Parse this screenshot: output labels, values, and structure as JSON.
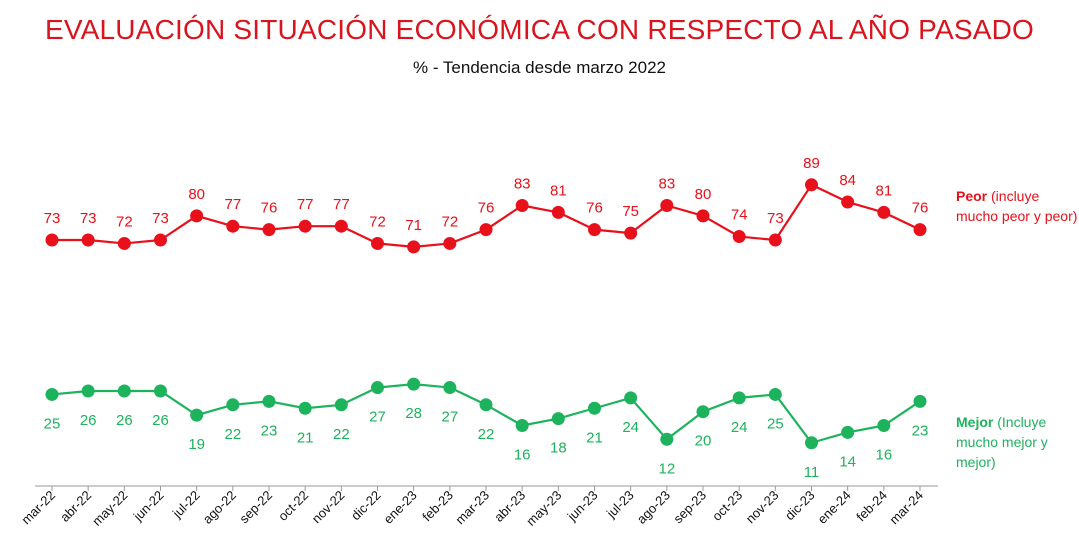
{
  "chart_data": {
    "type": "line",
    "title": "EVALUACIÓN SITUACIÓN ECONÓMICA CON RESPECTO AL AÑO PASADO",
    "subtitle": "% - Tendencia desde marzo 2022",
    "categories": [
      "mar-22",
      "abr-22",
      "may-22",
      "jun-22",
      "jul-22",
      "ago-22",
      "sep-22",
      "oct-22",
      "nov-22",
      "dic-22",
      "ene-23",
      "feb-23",
      "mar-23",
      "abr-23",
      "may-23",
      "jun-23",
      "jul-23",
      "ago-23",
      "sep-23",
      "oct-23",
      "nov-23",
      "dic-23",
      "ene-24",
      "feb-24",
      "mar-24"
    ],
    "series": [
      {
        "name": "Peor",
        "legend_bold": "Peor",
        "legend_rest": " (incluye mucho peor y peor)",
        "color": "#e8101a",
        "values": [
          73,
          73,
          72,
          73,
          80,
          77,
          76,
          77,
          77,
          72,
          71,
          72,
          76,
          83,
          81,
          76,
          75,
          83,
          80,
          74,
          73,
          89,
          84,
          81,
          76
        ]
      },
      {
        "name": "Mejor",
        "legend_bold": "Mejor",
        "legend_rest": " (Incluye mucho mejor y mejor)",
        "color": "#1db35c",
        "values": [
          25,
          26,
          26,
          26,
          19,
          22,
          23,
          21,
          22,
          27,
          28,
          27,
          22,
          16,
          18,
          21,
          24,
          12,
          20,
          24,
          25,
          11,
          14,
          16,
          23
        ]
      }
    ],
    "xlabel": "",
    "ylabel": "",
    "grid": false
  }
}
